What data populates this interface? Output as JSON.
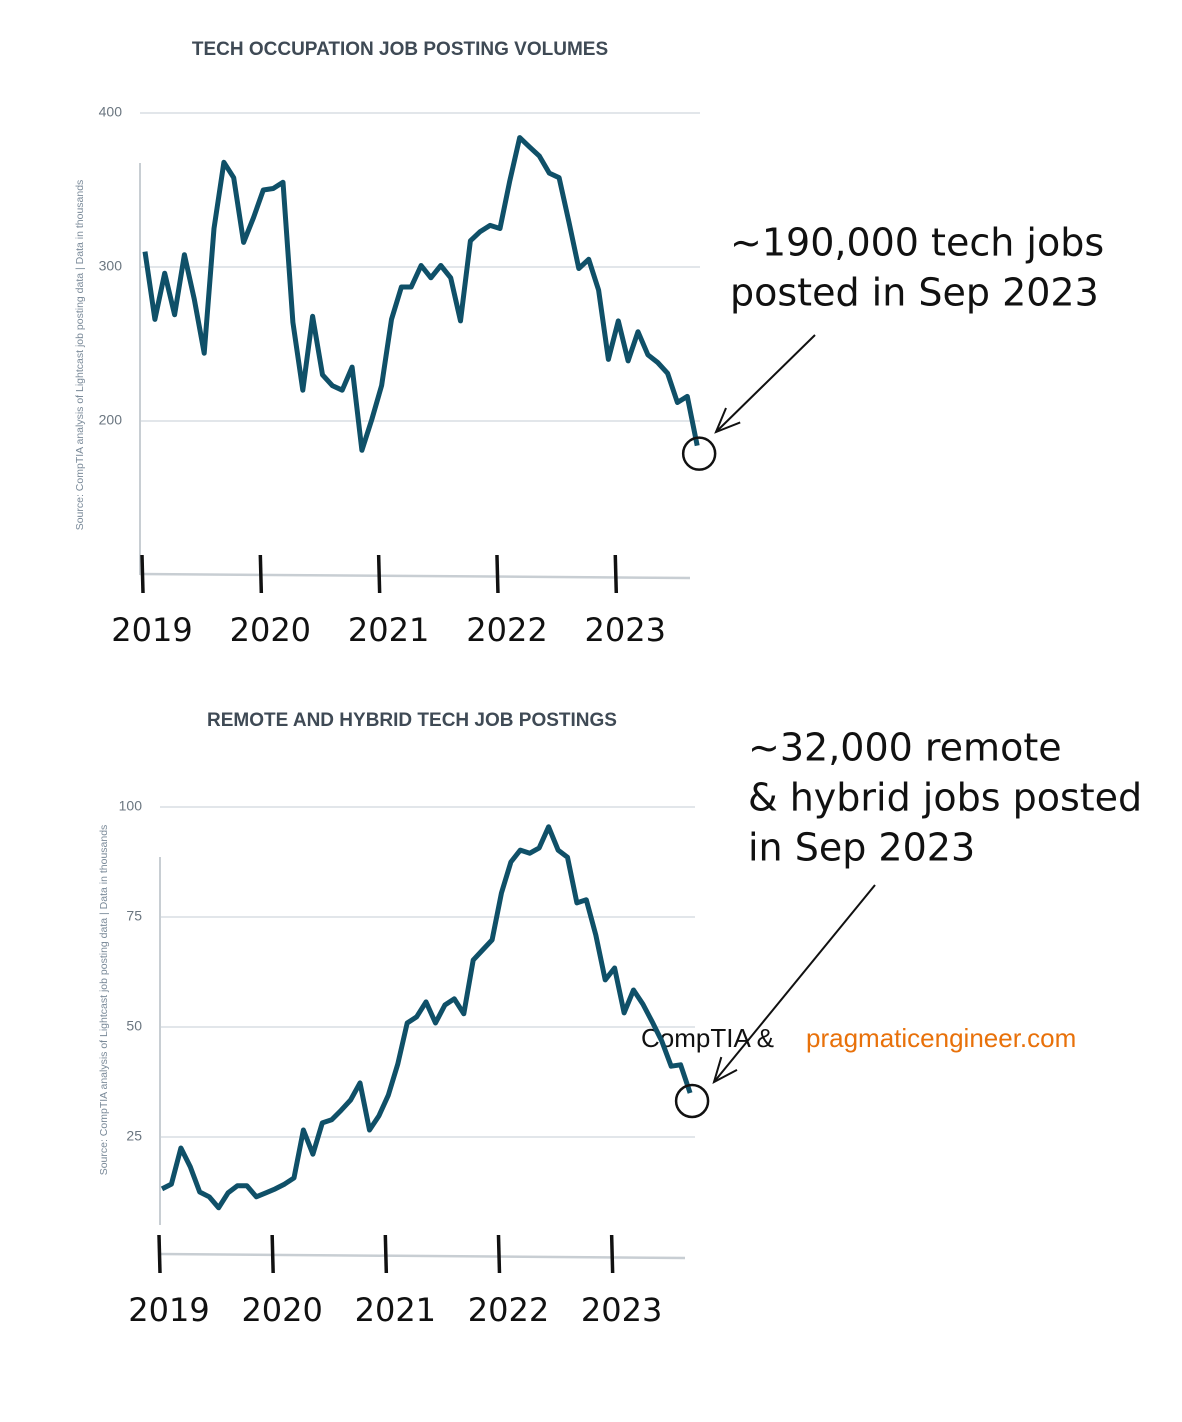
{
  "chart_data": [
    {
      "type": "line",
      "title": "TECH OCCUPATION JOB POSTING VOLUMES",
      "y_label": "Source: CompTIA analysis of Lightcast job posting data | Data in thousands",
      "categories": [
        "2019",
        null,
        null,
        null,
        null,
        null,
        null,
        null,
        null,
        null,
        null,
        null,
        "2020",
        null,
        null,
        null,
        null,
        null,
        null,
        null,
        null,
        null,
        null,
        null,
        "2021",
        null,
        null,
        null,
        null,
        null,
        null,
        null,
        null,
        null,
        null,
        null,
        "2022",
        null,
        null,
        null,
        null,
        null,
        null,
        null,
        null,
        null,
        null,
        null,
        "2023",
        null,
        null,
        null,
        null,
        null,
        null,
        null,
        null
      ],
      "values": [
        310,
        266,
        296,
        269,
        308,
        279,
        244,
        325,
        368,
        358,
        316,
        332,
        350,
        351,
        355,
        264,
        220,
        268,
        230,
        223,
        220,
        235,
        181,
        201,
        223,
        266,
        287,
        287,
        301,
        293,
        301,
        293,
        265,
        317,
        323,
        327,
        325,
        356,
        384,
        378,
        372,
        361,
        358,
        329,
        299,
        305,
        285,
        240,
        265,
        239,
        258,
        243,
        238,
        231,
        212,
        216,
        184
      ],
      "color": "#0f5068",
      "ylim": [
        100,
        400
      ],
      "yticks": [
        200,
        300,
        400
      ],
      "grid": true,
      "annotation": [
        "~190,000 tech jobs",
        "posted in Sep 2023"
      ]
    },
    {
      "type": "line",
      "title": "REMOTE AND HYBRID TECH JOB POSTINGS",
      "y_label": "Source: CompTIA analysis of Lightcast job posting data | Data in thousands",
      "categories": [
        "2019",
        null,
        null,
        null,
        null,
        null,
        null,
        null,
        null,
        null,
        null,
        null,
        "2020",
        null,
        null,
        null,
        null,
        null,
        null,
        null,
        null,
        null,
        null,
        null,
        "2021",
        null,
        null,
        null,
        null,
        null,
        null,
        null,
        null,
        null,
        null,
        null,
        "2022",
        null,
        null,
        null,
        null,
        null,
        null,
        null,
        null,
        null,
        null,
        null,
        "2023",
        null,
        null,
        null,
        null,
        null,
        null,
        null,
        null
      ],
      "values": [
        13.2,
        14.3,
        22.5,
        18.2,
        12.5,
        11.4,
        8.9,
        12.3,
        13.9,
        13.9,
        11.4,
        12.3,
        13.2,
        14.3,
        15.7,
        26.6,
        21.1,
        28.2,
        28.9,
        31.1,
        33.4,
        37.3,
        26.6,
        29.8,
        34.5,
        41.6,
        50.9,
        52.3,
        55.7,
        50.9,
        55,
        56.4,
        53,
        65.2,
        67.5,
        69.8,
        80.5,
        87.5,
        90.2,
        89.5,
        90.7,
        95.5,
        90.2,
        88.6,
        78.2,
        78.9,
        70.9,
        60.7,
        63.4,
        53.2,
        58.4,
        55.2,
        51.1,
        46.8,
        41.1,
        41.4,
        35
      ],
      "color": "#0f5068",
      "ylim": [
        5,
        100
      ],
      "yticks": [
        25,
        50,
        75,
        100
      ],
      "grid": true,
      "annotation": [
        "~32,000 remote",
        "& hybrid jobs posted",
        "in Sep 2023"
      ]
    }
  ],
  "credit": {
    "source": "CompTIA &",
    "site": "pragmaticengineer.com"
  }
}
